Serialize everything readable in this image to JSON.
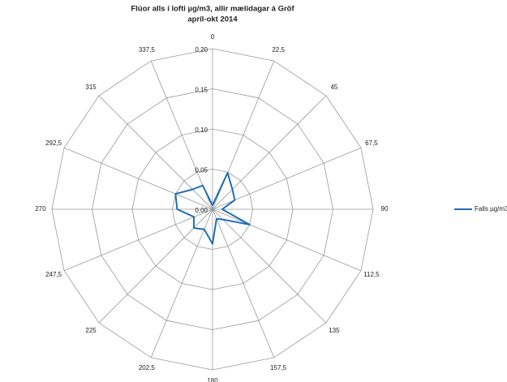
{
  "chart_data": {
    "type": "radar",
    "title": "Flúor alls í lofti µg/m3, allir mælidagar á Gröf",
    "subtitle": "apríl-okt 2014",
    "categories": [
      "0",
      "22,5",
      "45",
      "67,5",
      "90",
      "112,5",
      "135",
      "157,5",
      "180",
      "202,5",
      "225",
      "247,5",
      "270",
      "292,5",
      "315",
      "337,5"
    ],
    "series": [
      {
        "name": "Falls µg/m3",
        "color": "#1f6fb5",
        "values": [
          0.005,
          0.049,
          0.035,
          0.03,
          0.012,
          0.05,
          0.018,
          0.013,
          0.043,
          0.027,
          0.033,
          0.025,
          0.044,
          0.05,
          0.035,
          0.032
        ]
      }
    ],
    "ylim": [
      0,
      0.2
    ],
    "yticks": [
      {
        "value": 0,
        "label": "0,00"
      },
      {
        "value": 0.05,
        "label": "0,05"
      },
      {
        "value": 0.1,
        "label": "0,10"
      },
      {
        "value": 0.15,
        "label": "0,15"
      },
      {
        "value": 0.2,
        "label": "0,20"
      }
    ],
    "grid": true,
    "legend": "right"
  }
}
